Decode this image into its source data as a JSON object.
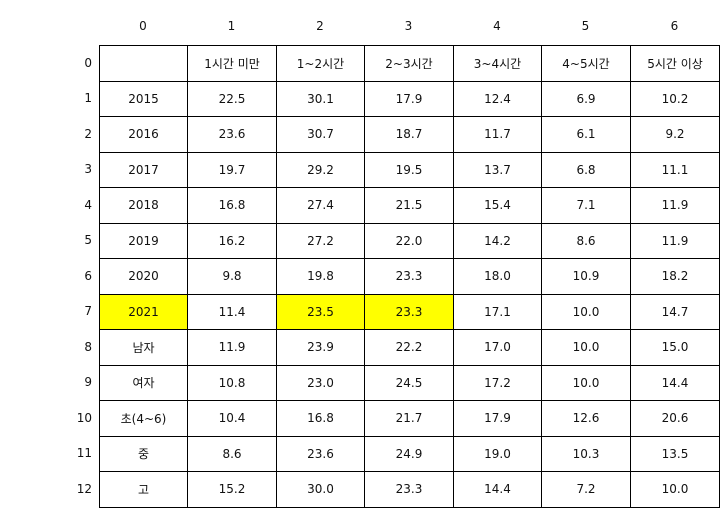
{
  "col_index": [
    "0",
    "1",
    "2",
    "3",
    "4",
    "5",
    "6"
  ],
  "row_index": [
    "0",
    "1",
    "2",
    "3",
    "4",
    "5",
    "6",
    "7",
    "8",
    "9",
    "10",
    "11",
    "12"
  ],
  "highlight_color": "#ffff00",
  "rows": [
    [
      "",
      "1시간 미만",
      "1~2시간",
      "2~3시간",
      "3~4시간",
      "4~5시간",
      "5시간 이상"
    ],
    [
      "2015",
      "22.5",
      "30.1",
      "17.9",
      "12.4",
      "6.9",
      "10.2"
    ],
    [
      "2016",
      "23.6",
      "30.7",
      "18.7",
      "11.7",
      "6.1",
      "9.2"
    ],
    [
      "2017",
      "19.7",
      "29.2",
      "19.5",
      "13.7",
      "6.8",
      "11.1"
    ],
    [
      "2018",
      "16.8",
      "27.4",
      "21.5",
      "15.4",
      "7.1",
      "11.9"
    ],
    [
      "2019",
      "16.2",
      "27.2",
      "22.0",
      "14.2",
      "8.6",
      "11.9"
    ],
    [
      "2020",
      "9.8",
      "19.8",
      "23.3",
      "18.0",
      "10.9",
      "18.2"
    ],
    [
      "2021",
      "11.4",
      "23.5",
      "23.3",
      "17.1",
      "10.0",
      "14.7"
    ],
    [
      "남자",
      "11.9",
      "23.9",
      "22.2",
      "17.0",
      "10.0",
      "15.0"
    ],
    [
      "여자",
      "10.8",
      "23.0",
      "24.5",
      "17.2",
      "10.0",
      "14.4"
    ],
    [
      "초(4~6)",
      "10.4",
      "16.8",
      "21.7",
      "17.9",
      "12.6",
      "20.6"
    ],
    [
      "중",
      "8.6",
      "23.6",
      "24.9",
      "19.0",
      "10.3",
      "13.5"
    ],
    [
      "고",
      "15.2",
      "30.0",
      "23.3",
      "14.4",
      "7.2",
      "10.0"
    ]
  ]
}
